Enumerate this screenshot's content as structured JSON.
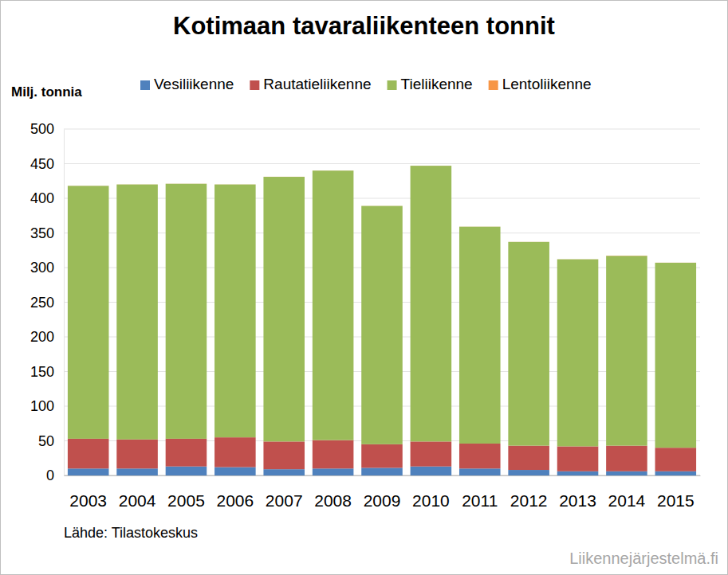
{
  "chart_data": {
    "type": "bar",
    "stacked": true,
    "title": "Kotimaan tavaraliikenteen tonnit",
    "y_label": "Milj. tonnia",
    "annotations": [
      "Lähde: Tilastokeskus",
      "Liikennejärjestelmä.fi"
    ],
    "categories": [
      "2003",
      "2004",
      "2005",
      "2006",
      "2007",
      "2008",
      "2009",
      "2010",
      "2011",
      "2012",
      "2013",
      "2014",
      "2015"
    ],
    "series": [
      {
        "name": "Vesiliikenne",
        "color": "#4f81bd",
        "values": [
          10,
          10,
          13,
          12,
          9,
          10,
          11,
          13,
          10,
          8,
          6,
          6,
          6
        ]
      },
      {
        "name": "Rautatieliikenne",
        "color": "#c0504d",
        "values": [
          43,
          42,
          40,
          43,
          40,
          41,
          34,
          36,
          36,
          35,
          36,
          37,
          34
        ]
      },
      {
        "name": "Tieliikenne",
        "color": "#9bbb59",
        "values": [
          365,
          368,
          368,
          365,
          382,
          389,
          344,
          398,
          313,
          294,
          270,
          274,
          267
        ]
      },
      {
        "name": "Lentoliikenne",
        "color": "#f79646",
        "values": [
          0.1,
          0.1,
          0.1,
          0.1,
          0.1,
          0.1,
          0.1,
          0.1,
          0.1,
          0.1,
          0.1,
          0.3,
          0.1
        ]
      }
    ],
    "ylim": [
      0,
      500
    ],
    "yticks": [
      0,
      50,
      100,
      150,
      200,
      250,
      300,
      350,
      400,
      450,
      500
    ],
    "grid": true,
    "legend": "top"
  }
}
